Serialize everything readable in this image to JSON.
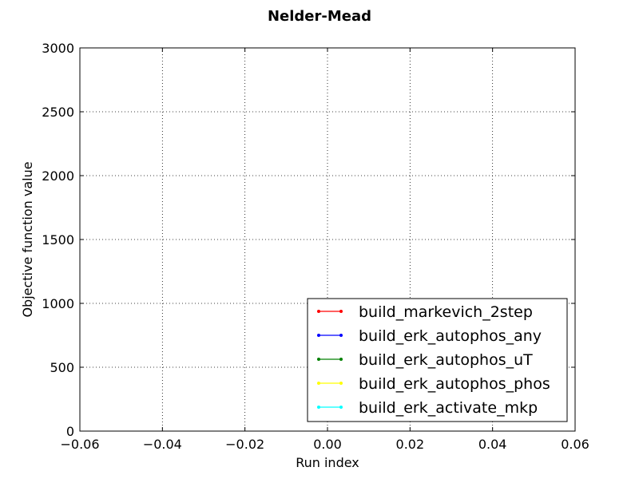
{
  "chart_data": {
    "type": "line",
    "title": "Nelder-Mead",
    "xlabel": "Run index",
    "ylabel": "Objective function value",
    "xlim": [
      -0.06,
      0.06
    ],
    "ylim": [
      0,
      3000
    ],
    "x_ticks": [
      "−0.06",
      "−0.04",
      "−0.02",
      "0.00",
      "0.02",
      "0.04",
      "0.06"
    ],
    "y_ticks": [
      "0",
      "500",
      "1000",
      "1500",
      "2000",
      "2500",
      "3000"
    ],
    "grid": true,
    "legend_position": "lower-right",
    "series": [
      {
        "name": "build_markevich_2step",
        "color": "#ff0000",
        "x": [],
        "y": []
      },
      {
        "name": "build_erk_autophos_any",
        "color": "#0000ff",
        "x": [],
        "y": []
      },
      {
        "name": "build_erk_autophos_uT",
        "color": "#008000",
        "x": [],
        "y": []
      },
      {
        "name": "build_erk_autophos_phos",
        "color": "#ffff00",
        "x": [],
        "y": []
      },
      {
        "name": "build_erk_activate_mkp",
        "color": "#00ffff",
        "x": [],
        "y": []
      }
    ]
  }
}
